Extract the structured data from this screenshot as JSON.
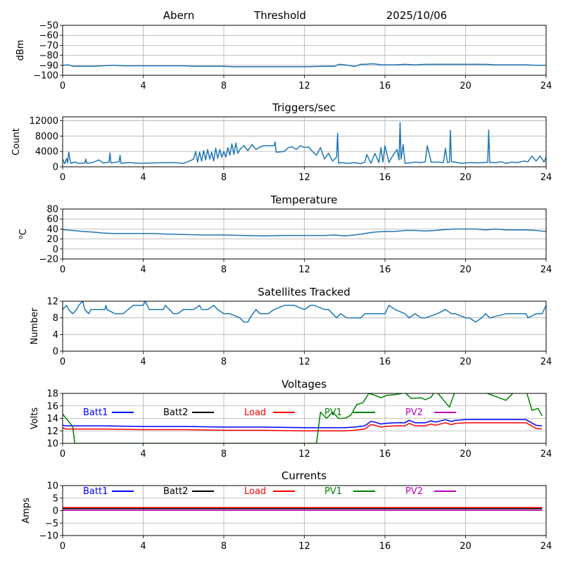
{
  "chart_data": [
    {
      "type": "line",
      "title_parts": [
        "Abern",
        "Threshold",
        "2025/10/06"
      ],
      "xlabel": "",
      "ylabel": "dBm",
      "xlim": [
        0,
        24
      ],
      "ylim": [
        -100,
        -50
      ],
      "xticks": [
        "0",
        "4",
        "8",
        "12",
        "16",
        "20",
        "24"
      ],
      "yticks": [
        "−50",
        "−60",
        "−70",
        "−80",
        "−90",
        "−100"
      ],
      "ytick_values": [
        -50,
        -60,
        -70,
        -80,
        -90,
        -100
      ],
      "grid": true,
      "series": [
        {
          "name": "Threshold",
          "color": "#1f77b4",
          "x": [
            0,
            0.3,
            0.5,
            1,
            1.5,
            2,
            2.5,
            3,
            3.5,
            4,
            5,
            6,
            6.5,
            7,
            8,
            8.5,
            9,
            10,
            11,
            12,
            13,
            13.5,
            13.7,
            14,
            14.3,
            14.5,
            14.8,
            15,
            15.3,
            15.5,
            15.8,
            16,
            16.5,
            17,
            17.5,
            18,
            18.5,
            19,
            19.5,
            20,
            20.5,
            21,
            21.5,
            22,
            22.5,
            23,
            23.5,
            24
          ],
          "y": [
            -90,
            -89.5,
            -91,
            -91,
            -91,
            -90.5,
            -90,
            -90.5,
            -90.5,
            -90.5,
            -90.5,
            -90.5,
            -91,
            -91,
            -91,
            -91.5,
            -91.5,
            -91.5,
            -91.5,
            -91.5,
            -91,
            -91,
            -89,
            -89.5,
            -90.5,
            -91,
            -89,
            -89,
            -88.5,
            -88.5,
            -89.5,
            -89.5,
            -89.5,
            -89,
            -89.5,
            -89,
            -89,
            -89,
            -89,
            -89,
            -89,
            -89,
            -89.5,
            -89.5,
            -89.5,
            -89.5,
            -90,
            -90
          ]
        }
      ]
    },
    {
      "type": "line",
      "title": "Triggers/sec",
      "xlabel": "",
      "ylabel": "Count",
      "xlim": [
        0,
        24
      ],
      "ylim": [
        0,
        13000
      ],
      "xticks": [
        "0",
        "4",
        "8",
        "12",
        "16",
        "20",
        "24"
      ],
      "yticks": [
        "0",
        "4000",
        "8000",
        "12000"
      ],
      "ytick_values": [
        0,
        4000,
        8000,
        12000
      ],
      "grid": true,
      "series": [
        {
          "name": "Triggers/sec",
          "color": "#1f77b4",
          "x": [
            0,
            0.1,
            0.2,
            0.25,
            0.3,
            0.4,
            0.6,
            0.8,
            1.1,
            1.15,
            1.2,
            1.5,
            1.8,
            2.0,
            2.3,
            2.35,
            2.4,
            2.8,
            2.85,
            2.9,
            3.3,
            3.8,
            4.5,
            5.5,
            6.0,
            6.3,
            6.5,
            6.6,
            6.7,
            6.8,
            6.9,
            7.0,
            7.1,
            7.2,
            7.3,
            7.4,
            7.5,
            7.6,
            7.7,
            7.8,
            7.9,
            8.0,
            8.1,
            8.2,
            8.3,
            8.4,
            8.5,
            8.6,
            8.7,
            8.8,
            9.0,
            9.2,
            9.4,
            9.6,
            9.8,
            10.0,
            10.3,
            10.5,
            10.55,
            10.6,
            11.0,
            11.2,
            11.4,
            11.6,
            11.8,
            12.0,
            12.2,
            12.4,
            12.6,
            12.8,
            13.0,
            13.2,
            13.4,
            13.6,
            13.65,
            13.7,
            13.8,
            14.2,
            14.5,
            14.8,
            15.0,
            15.1,
            15.3,
            15.5,
            15.7,
            15.8,
            15.9,
            16.0,
            16.2,
            16.4,
            16.6,
            16.7,
            16.75,
            16.8,
            16.9,
            17.0,
            17.2,
            17.5,
            17.8,
            18.0,
            18.1,
            18.3,
            18.6,
            18.9,
            19.0,
            19.1,
            19.2,
            19.25,
            19.3,
            19.5,
            19.8,
            20.0,
            20.3,
            20.6,
            20.9,
            21.1,
            21.15,
            21.2,
            21.5,
            21.8,
            22.0,
            22.3,
            22.6,
            22.9,
            23.1,
            23.3,
            23.5,
            23.7,
            23.9,
            24
          ],
          "y": [
            2000,
            800,
            2200,
            1000,
            3800,
            900,
            1200,
            900,
            1000,
            2000,
            900,
            1100,
            1800,
            1000,
            1200,
            3600,
            1000,
            1300,
            3000,
            900,
            1100,
            900,
            1000,
            1100,
            900,
            1500,
            2000,
            4000,
            1200,
            3800,
            1500,
            4200,
            1800,
            4500,
            2000,
            3800,
            1500,
            4800,
            2200,
            4500,
            2500,
            4000,
            2500,
            5000,
            3000,
            6000,
            3200,
            6200,
            3500,
            4500,
            5500,
            4200,
            5800,
            4500,
            5200,
            5500,
            5500,
            5500,
            6500,
            3800,
            4000,
            5000,
            5200,
            4500,
            5500,
            5000,
            5200,
            4000,
            3000,
            5000,
            2000,
            3500,
            1500,
            2500,
            8700,
            900,
            1100,
            900,
            1100,
            800,
            1200,
            3200,
            900,
            3500,
            1100,
            5000,
            1200,
            5500,
            1100,
            3000,
            4500,
            1800,
            11500,
            2000,
            5800,
            900,
            1000,
            1200,
            1100,
            1300,
            5500,
            1200,
            1200,
            1100,
            4800,
            1100,
            1200,
            9500,
            1300,
            1200,
            900,
            1000,
            1100,
            1000,
            1100,
            1200,
            9600,
            1100,
            1100,
            1300,
            900,
            1200,
            1100,
            1500,
            1300,
            2800,
            1500,
            2800,
            1200,
            2500
          ],
          "note": "approximate"
        }
      ]
    },
    {
      "type": "line",
      "title": "Temperature",
      "xlabel": "",
      "ylabel": "°C",
      "ylabel_parts": [
        "o",
        "C"
      ],
      "xlim": [
        0,
        24
      ],
      "ylim": [
        -20,
        80
      ],
      "xticks": [
        "0",
        "4",
        "8",
        "12",
        "16",
        "20",
        "24"
      ],
      "yticks": [
        "−20",
        "0",
        "20",
        "40",
        "60",
        "80"
      ],
      "ytick_values": [
        -20,
        0,
        20,
        40,
        60,
        80
      ],
      "grid": true,
      "series": [
        {
          "name": "Temperature",
          "color": "#1f77b4",
          "x": [
            0,
            0.5,
            1,
            1.5,
            2,
            2.5,
            3,
            3.5,
            4,
            4.5,
            5,
            6,
            7,
            8,
            9,
            10,
            11,
            12,
            13,
            13.5,
            14,
            14.5,
            15,
            15.5,
            16,
            16.5,
            17,
            17.5,
            18,
            18.5,
            19,
            19.5,
            20,
            20.5,
            21,
            21.5,
            22,
            22.5,
            23,
            23.5,
            24
          ],
          "y": [
            39,
            37,
            35,
            34,
            32,
            31,
            31,
            31,
            31,
            31,
            30,
            29,
            28,
            28,
            27,
            26,
            27,
            27,
            27,
            28,
            26,
            28,
            31,
            34,
            35,
            35,
            37,
            37,
            36,
            37,
            39,
            40,
            40,
            40,
            38,
            40,
            38,
            38,
            38,
            37,
            35
          ]
        }
      ]
    },
    {
      "type": "line",
      "title": "Satellites Tracked",
      "xlabel": "",
      "ylabel": "Number",
      "xlim": [
        0,
        24
      ],
      "ylim": [
        0,
        12
      ],
      "xticks": [
        "0",
        "4",
        "8",
        "12",
        "16",
        "20",
        "24"
      ],
      "yticks": [
        "0",
        "4",
        "8",
        "12"
      ],
      "ytick_values": [
        0,
        4,
        8,
        12
      ],
      "grid": true,
      "series": [
        {
          "name": "Satellites",
          "color": "#1f77b4",
          "x": [
            0,
            0.2,
            0.3,
            0.5,
            0.7,
            0.8,
            1.0,
            1.1,
            1.3,
            1.4,
            2.1,
            2.15,
            2.2,
            2.6,
            3.0,
            3.5,
            4.0,
            4.1,
            4.2,
            4.3,
            5.0,
            5.1,
            5.3,
            5.5,
            5.7,
            6.0,
            6.3,
            6.5,
            6.8,
            6.9,
            7.2,
            7.5,
            7.7,
            8.0,
            8.3,
            8.8,
            9.0,
            9.2,
            9.3,
            9.6,
            9.8,
            10.2,
            10.5,
            11.0,
            11.5,
            12.0,
            12.3,
            12.5,
            13.0,
            13.2,
            13.6,
            13.8,
            14.1,
            14.8,
            15.0,
            15.5,
            16.0,
            16.2,
            16.5,
            17.0,
            17.2,
            17.5,
            17.8,
            18.0,
            18.6,
            19.0,
            19.3,
            19.5,
            20.0,
            20.2,
            20.5,
            20.8,
            21.0,
            21.2,
            22.0,
            22.5,
            23.0,
            23.1,
            23.5,
            23.8,
            24
          ],
          "y": [
            10,
            11,
            10,
            9,
            10,
            11,
            12,
            10,
            9,
            10,
            10,
            11,
            10,
            9,
            9,
            11,
            11,
            12,
            11,
            10,
            10,
            11,
            10,
            9,
            9,
            10,
            10,
            10,
            11,
            10,
            10,
            11,
            10,
            9,
            9,
            8,
            7,
            7,
            8,
            10,
            9,
            9,
            10,
            11,
            11,
            10,
            11,
            11,
            10,
            10,
            8,
            9,
            8,
            8,
            9,
            9,
            9,
            11,
            10,
            9,
            8,
            9,
            8,
            8,
            9,
            10,
            9,
            9,
            8,
            8,
            7,
            8,
            9,
            8,
            9,
            9,
            9,
            8,
            9,
            9,
            11
          ]
        }
      ]
    },
    {
      "type": "line",
      "title": "Voltages",
      "xlabel": "",
      "ylabel": "Volts",
      "xlim": [
        0,
        24
      ],
      "ylim": [
        10,
        18
      ],
      "xticks": [
        "0",
        "4",
        "8",
        "12",
        "16",
        "20",
        "24"
      ],
      "yticks": [
        "10",
        "12",
        "14",
        "16",
        "18"
      ],
      "ytick_values": [
        10,
        12,
        14,
        16,
        18
      ],
      "grid": true,
      "legend": [
        "Batt1",
        "Batt2",
        "Load",
        "PV1",
        "PV2"
      ],
      "legend_placement": "top (inside, single row)",
      "series": [
        {
          "name": "Batt1",
          "color": "#0000ff",
          "x": [
            0,
            0.2,
            1,
            2,
            4,
            6,
            8,
            10,
            12,
            14,
            14.5,
            15,
            15.3,
            15.5,
            15.8,
            16,
            16.5,
            17,
            17.2,
            17.5,
            18,
            18.3,
            18.5,
            19,
            19.3,
            19.5,
            20,
            21,
            22,
            23,
            23.5,
            23.8
          ],
          "y": [
            12.9,
            12.8,
            12.8,
            12.8,
            12.7,
            12.7,
            12.6,
            12.6,
            12.5,
            12.5,
            12.6,
            12.8,
            13.5,
            13.4,
            13.1,
            13.2,
            13.3,
            13.3,
            13.7,
            13.3,
            13.3,
            13.6,
            13.4,
            13.8,
            13.5,
            13.7,
            13.8,
            13.8,
            13.8,
            13.8,
            12.9,
            12.8
          ]
        },
        {
          "name": "Batt2",
          "color": "#000000",
          "x": [],
          "y": []
        },
        {
          "name": "Load",
          "color": "#ff0000",
          "x": [
            0,
            0.2,
            1,
            2,
            4,
            6,
            8,
            10,
            12,
            14,
            14.5,
            15,
            15.3,
            15.5,
            15.8,
            16,
            16.5,
            17,
            17.2,
            17.5,
            18,
            18.3,
            18.5,
            19,
            19.3,
            19.5,
            20,
            21,
            22,
            23,
            23.5,
            23.8
          ],
          "y": [
            12.5,
            12.3,
            12.3,
            12.3,
            12.2,
            12.2,
            12.1,
            12.1,
            12.0,
            12.0,
            12.1,
            12.3,
            13.0,
            12.9,
            12.6,
            12.7,
            12.8,
            12.8,
            13.2,
            12.8,
            12.8,
            13.1,
            12.9,
            13.3,
            13.0,
            13.2,
            13.3,
            13.3,
            13.3,
            13.3,
            12.4,
            12.3
          ]
        },
        {
          "name": "PV1",
          "color": "#008000",
          "x": [
            0,
            0.5,
            0.6,
            12.6,
            12.8,
            13.1,
            13.4,
            13.7,
            14.0,
            14.3,
            14.6,
            14.9,
            15.2,
            15.5,
            15.8,
            16.1,
            16.5,
            17.0,
            17.3,
            17.8,
            18.0,
            18.3,
            18.5,
            19.2,
            19.5,
            20.5,
            21.0,
            22.0,
            22.5,
            23.0,
            23.3,
            23.6,
            23.8
          ],
          "y": [
            14.7,
            12.7,
            10,
            10,
            15,
            14,
            15,
            14,
            14,
            14.5,
            16.2,
            16.5,
            18,
            17.7,
            17.3,
            17.7,
            17.8,
            18.1,
            17.2,
            17.3,
            17.0,
            17.4,
            18.5,
            15.8,
            18.5,
            18.5,
            18.1,
            16.9,
            18.5,
            18.5,
            15.3,
            15.6,
            14.4
          ]
        },
        {
          "name": "PV2",
          "color": "#bf00bf",
          "x": [],
          "y": []
        }
      ]
    },
    {
      "type": "line",
      "title": "Currents",
      "xlabel": "",
      "ylabel": "Amps",
      "xlim": [
        0,
        24
      ],
      "ylim": [
        -10,
        10
      ],
      "xticks": [
        "0",
        "4",
        "8",
        "12",
        "16",
        "20",
        "24"
      ],
      "yticks": [
        "−10",
        "−5",
        "0",
        "5",
        "10"
      ],
      "ytick_values": [
        -10,
        -5,
        0,
        5,
        10
      ],
      "grid": true,
      "legend": [
        "Batt1",
        "Batt2",
        "Load",
        "PV1",
        "PV2"
      ],
      "legend_placement": "top (inside, single row)",
      "series": [
        {
          "name": "Batt1",
          "color": "#0000ff",
          "x": [
            0,
            23.8
          ],
          "y": [
            0.9,
            0.9
          ]
        },
        {
          "name": "Batt2",
          "color": "#000000",
          "x": [
            0,
            23.8
          ],
          "y": [
            0.8,
            0.8
          ]
        },
        {
          "name": "Load",
          "color": "#ff0000",
          "x": [
            0,
            23.8
          ],
          "y": [
            1.2,
            1.2
          ]
        },
        {
          "name": "PV1",
          "color": "#008000",
          "x": [
            0,
            23.8
          ],
          "y": [
            0.1,
            0.1
          ]
        },
        {
          "name": "PV2",
          "color": "#bf00bf",
          "x": [
            0,
            23.8
          ],
          "y": [
            0.1,
            0.1
          ]
        }
      ]
    }
  ]
}
